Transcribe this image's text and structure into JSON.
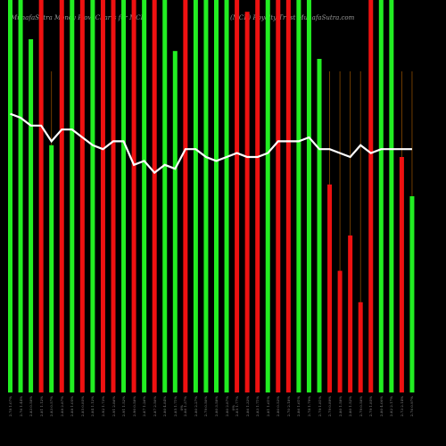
{
  "header": {
    "left": "MunafaSutra  Money Flow Charts for MCR",
    "right": "(MCR)  Royalty Trust  MunafaSutra.com"
  },
  "chart_data": {
    "type": "bar",
    "title": "",
    "ylim": [
      0,
      100
    ],
    "bar_colors": {
      "up": "#22ee22",
      "down": "#ee1111"
    },
    "line_color": "#ffffff",
    "vline_color": "#8a4a00",
    "labels": [
      "2.78 1.07%",
      "2.76 1.44%",
      "2.83 0.58%",
      "2.81 1.12%",
      "2.83 0.57%",
      "2.88 2.87%",
      "2.88 1.05%",
      "2.85 0.85%",
      "2.84 1.12%",
      "2.92 1.73%",
      "2.91 2.86%",
      "2.91 1.52%",
      "2.90 0.58%",
      "2.87 1.26%",
      "2.87 2.50%",
      "2.80 4.84%",
      "2.85 1.71%",
      "2.86 1.37%",
      "2.80 2.27%",
      "2.79 0.50%",
      "2.80 3.58%",
      "2.80 2.87%",
      "2.85 1.77%",
      "2.86 1.33%",
      "2.83 1.71%",
      "2.81 1.61%",
      "2.80 0.53%",
      "2.70 2.18%",
      "2.86 1.61%",
      "2.78 1.79%",
      "2.79 1.81%",
      "2.79 0.89%",
      "2.80 1.58%",
      "2.80 1.52%",
      "2.79 0.58%",
      "2.79 1.85%",
      "2.80 4.00%",
      "2.82 2.17%",
      "2.73 2.14%",
      "2.76 0.97%"
    ],
    "series": [
      {
        "values": [
          100,
          100,
          90,
          100,
          63,
          100,
          100,
          100,
          100,
          100,
          100,
          100,
          100,
          100,
          100,
          100,
          87,
          100,
          100,
          100,
          100,
          100,
          100,
          97,
          100,
          100,
          100,
          100,
          100,
          100,
          85,
          53,
          31,
          40,
          23,
          100,
          100,
          100,
          60,
          50
        ],
        "colors": [
          "up",
          "up",
          "up",
          "down",
          "up",
          "down",
          "up",
          "down",
          "up",
          "down",
          "down",
          "up",
          "down",
          "up",
          "down",
          "up",
          "up",
          "down",
          "up",
          "up",
          "up",
          "up",
          "down",
          "down",
          "down",
          "up",
          "down",
          "down",
          "up",
          "up",
          "up",
          "down",
          "down",
          "down",
          "down",
          "down",
          "up",
          "up",
          "down",
          "up"
        ]
      },
      {
        "values": [
          71,
          70,
          68,
          68,
          64,
          67,
          67,
          65,
          63,
          62,
          64,
          64,
          58,
          59,
          56,
          58,
          57,
          62,
          62,
          60,
          59,
          60,
          61,
          60,
          60,
          61,
          64,
          64,
          64,
          65,
          62,
          62,
          61,
          60,
          63,
          61,
          62,
          62,
          62,
          62
        ]
      }
    ],
    "marker_labels": [
      "0%",
      "0%"
    ]
  }
}
